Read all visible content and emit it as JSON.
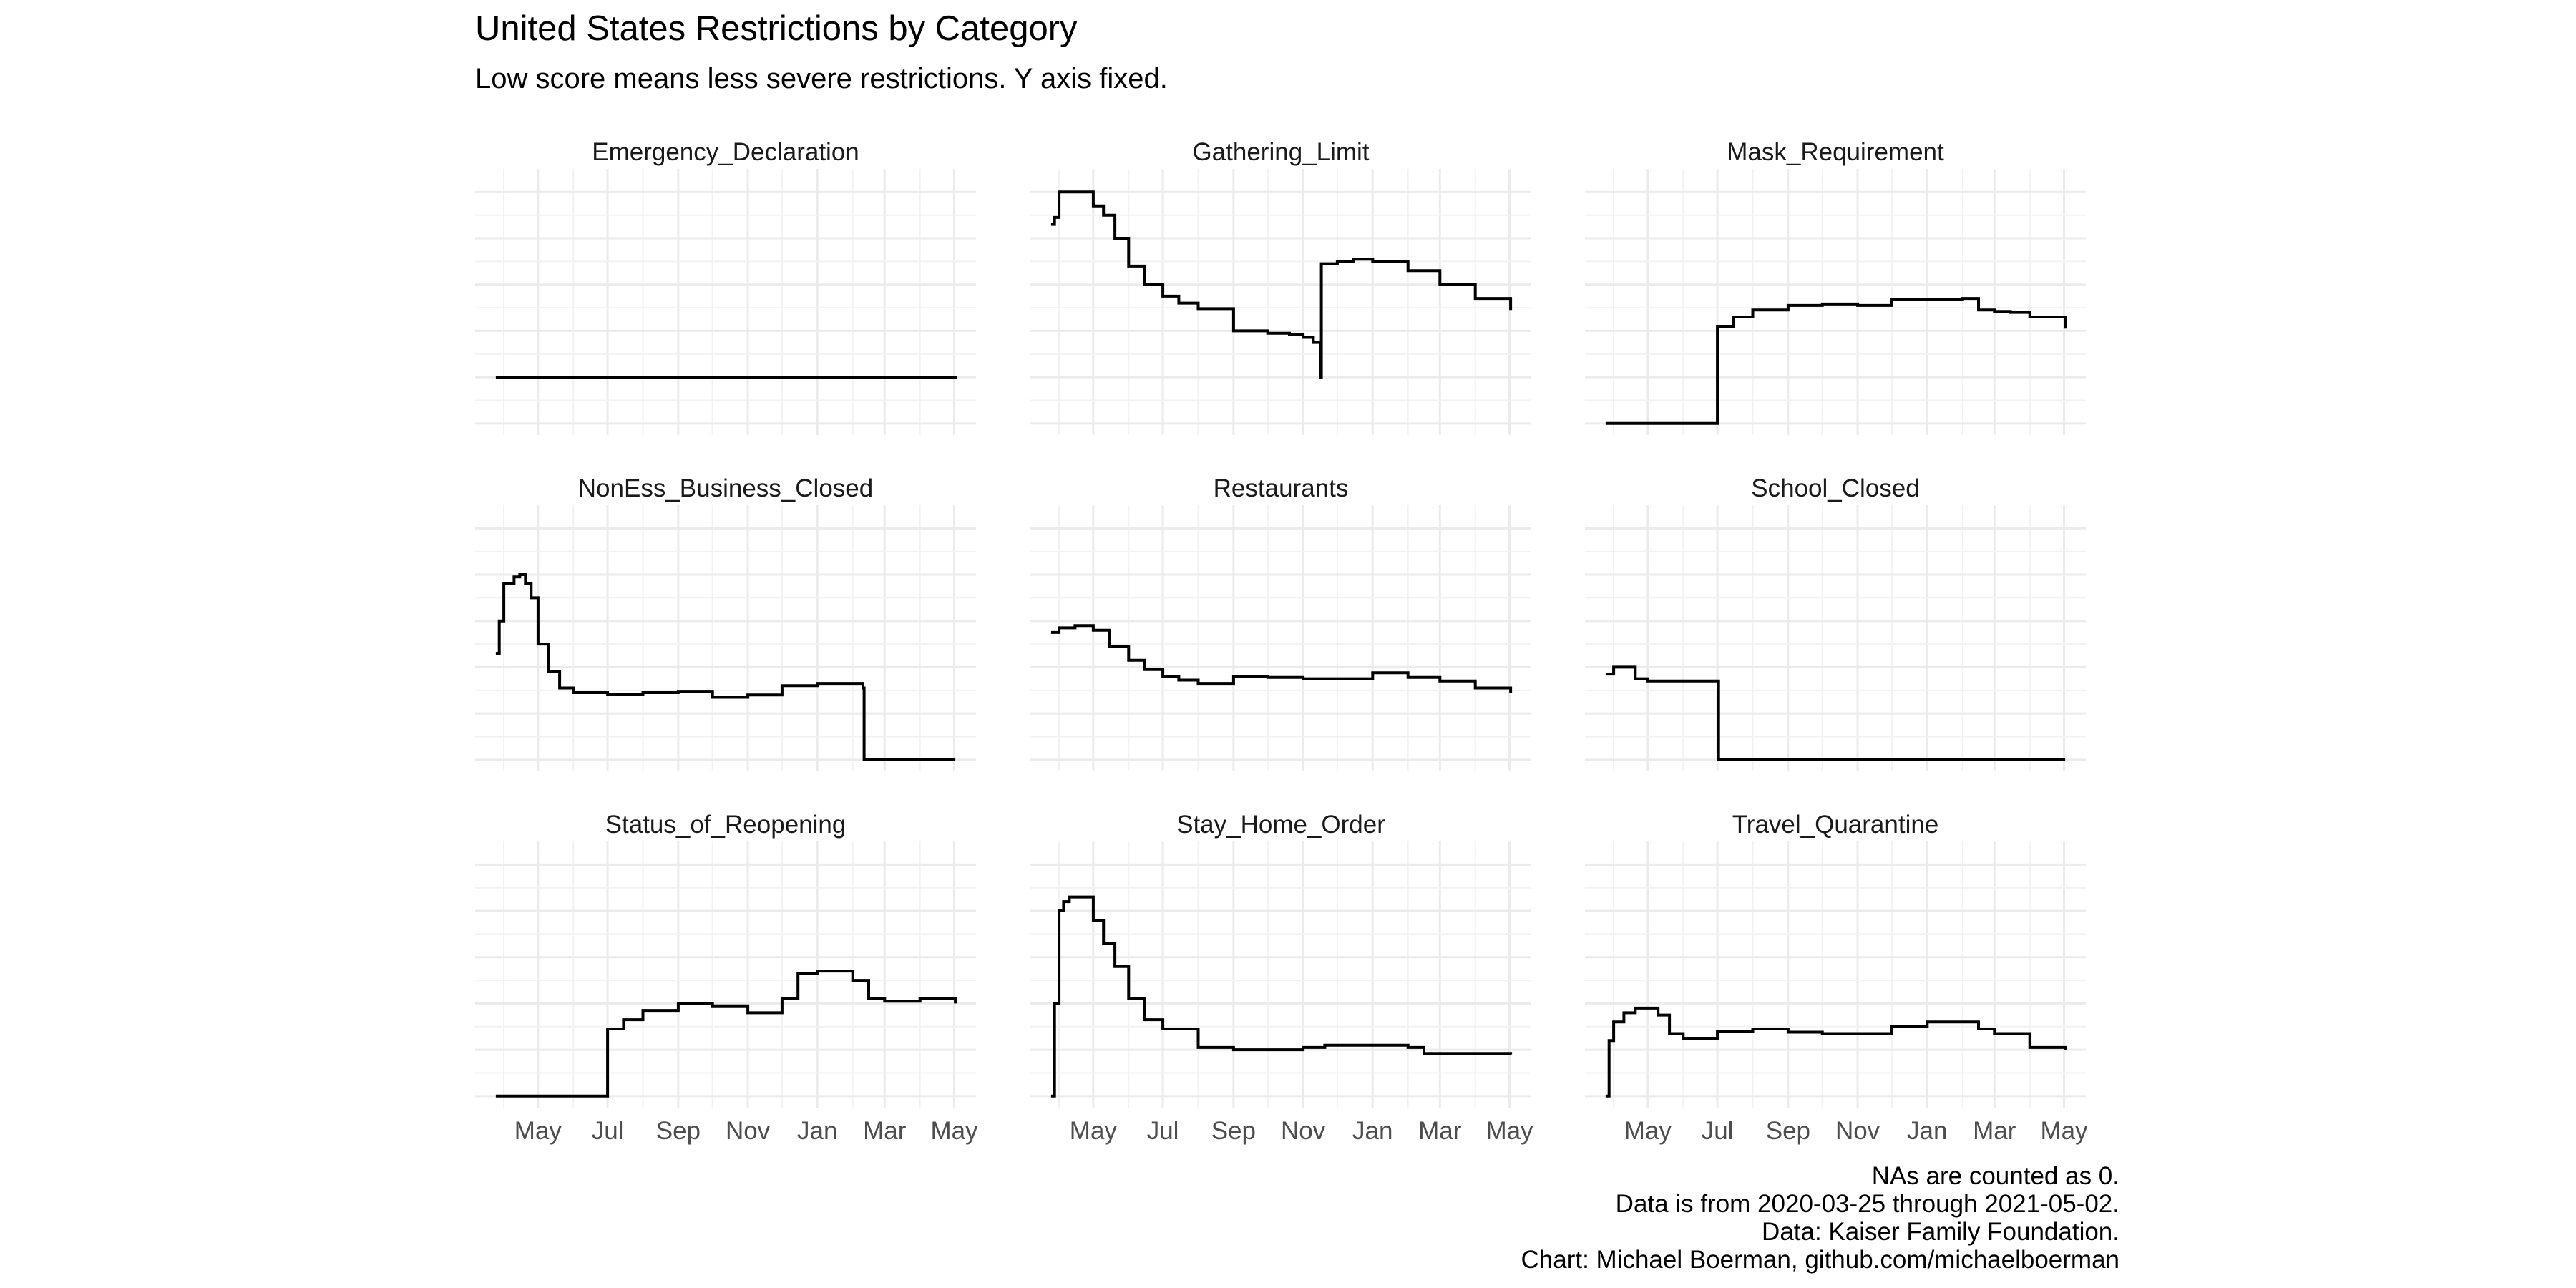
{
  "title": "United States Restrictions by Category",
  "subtitle": "Low score means less severe restrictions. Y axis fixed.",
  "captions": {
    "line1": "NAs are counted as 0.",
    "line2": "Data is from 2020-03-25 through 2021-05-02.",
    "line3": "Data: Kaiser Family Foundation.",
    "line4": "Chart: Michael Boerman, github.com/michaelboerman"
  },
  "chart_data": {
    "type": "line",
    "layout": "facet-grid 3x3",
    "y_axis": "fixed across panels, no tick labels",
    "x_tick_labels": [
      "May",
      "Jul",
      "Sep",
      "Nov",
      "Jan",
      "Mar",
      "May"
    ],
    "x_tick_dates": [
      "2020-05-01",
      "2020-07-01",
      "2020-09-01",
      "2020-11-01",
      "2021-01-01",
      "2021-03-01",
      "2021-05-01"
    ],
    "xlim": [
      "2020-03-25",
      "2021-05-02"
    ],
    "ylim": [
      0,
      5
    ],
    "grid": true,
    "line_color": "#000000",
    "grid_color": "#ebebeb",
    "panels": [
      {
        "name": "Emergency_Declaration",
        "x": [
          "2020-03-25",
          "2021-02-01",
          "2021-05-02"
        ],
        "y": [
          1.0,
          1.0,
          0.97
        ]
      },
      {
        "name": "Gathering_Limit",
        "x": [
          "2020-03-25",
          "2020-03-28",
          "2020-04-01",
          "2020-04-25",
          "2020-05-01",
          "2020-05-10",
          "2020-05-20",
          "2020-06-01",
          "2020-06-15",
          "2020-07-01",
          "2020-07-15",
          "2020-08-01",
          "2020-09-01",
          "2020-10-01",
          "2020-10-20",
          "2020-11-01",
          "2020-11-10",
          "2020-11-16",
          "2020-11-17",
          "2020-12-01",
          "2020-12-15",
          "2021-01-01",
          "2021-02-01",
          "2021-03-01",
          "2021-04-01",
          "2021-05-02"
        ],
        "y": [
          4.3,
          4.45,
          5.0,
          5.0,
          4.7,
          4.5,
          4.0,
          3.4,
          3.0,
          2.75,
          2.6,
          2.48,
          2.0,
          1.95,
          1.93,
          1.86,
          1.75,
          1.0,
          3.45,
          3.5,
          3.55,
          3.5,
          3.3,
          3.0,
          2.7,
          2.45
        ]
      },
      {
        "name": "Mask_Requirement",
        "x": [
          "2020-03-25",
          "2020-06-30",
          "2020-07-01",
          "2020-07-15",
          "2020-08-01",
          "2020-09-01",
          "2020-10-01",
          "2020-11-01",
          "2020-12-01",
          "2021-01-01",
          "2021-02-01",
          "2021-02-15",
          "2021-03-01",
          "2021-03-15",
          "2021-04-01",
          "2021-05-02"
        ],
        "y": [
          0.0,
          0.0,
          2.1,
          2.3,
          2.45,
          2.55,
          2.58,
          2.55,
          2.68,
          2.68,
          2.7,
          2.45,
          2.42,
          2.4,
          2.3,
          2.05
        ]
      },
      {
        "name": "NonEss_Business_Closed",
        "x": [
          "2020-03-25",
          "2020-03-28",
          "2020-04-01",
          "2020-04-10",
          "2020-04-15",
          "2020-04-20",
          "2020-04-25",
          "2020-05-01",
          "2020-05-10",
          "2020-05-20",
          "2020-06-01",
          "2020-07-01",
          "2020-08-01",
          "2020-09-01",
          "2020-10-01",
          "2020-11-01",
          "2020-12-01",
          "2021-01-01",
          "2021-02-10",
          "2021-02-11",
          "2021-05-02"
        ],
        "y": [
          2.3,
          3.0,
          3.8,
          3.95,
          4.0,
          3.8,
          3.5,
          2.5,
          1.9,
          1.55,
          1.45,
          1.42,
          1.45,
          1.48,
          1.35,
          1.4,
          1.6,
          1.65,
          1.55,
          0.0,
          0.0
        ]
      },
      {
        "name": "Restaurants",
        "x": [
          "2020-03-25",
          "2020-04-01",
          "2020-04-15",
          "2020-05-01",
          "2020-05-15",
          "2020-06-01",
          "2020-06-15",
          "2020-07-01",
          "2020-07-15",
          "2020-08-01",
          "2020-09-01",
          "2020-10-01",
          "2020-11-01",
          "2020-12-01",
          "2021-01-01",
          "2021-02-01",
          "2021-03-01",
          "2021-04-01",
          "2021-05-02"
        ],
        "y": [
          2.75,
          2.85,
          2.9,
          2.8,
          2.45,
          2.15,
          1.95,
          1.8,
          1.72,
          1.65,
          1.8,
          1.78,
          1.75,
          1.75,
          1.88,
          1.78,
          1.7,
          1.55,
          1.45
        ]
      },
      {
        "name": "School_Closed",
        "x": [
          "2020-03-25",
          "2020-04-01",
          "2020-04-10",
          "2020-04-20",
          "2020-05-01",
          "2020-06-01",
          "2020-07-01",
          "2020-07-02",
          "2021-05-02"
        ],
        "y": [
          1.85,
          2.0,
          2.0,
          1.75,
          1.7,
          1.7,
          1.7,
          0.0,
          0.0
        ]
      },
      {
        "name": "Status_of_Reopening",
        "x": [
          "2020-03-25",
          "2020-06-30",
          "2020-07-01",
          "2020-07-15",
          "2020-08-01",
          "2020-09-01",
          "2020-10-01",
          "2020-11-01",
          "2020-12-01",
          "2020-12-15",
          "2021-01-01",
          "2021-02-01",
          "2021-02-15",
          "2021-03-01",
          "2021-04-01",
          "2021-05-02"
        ],
        "y": [
          0.0,
          0.0,
          1.45,
          1.65,
          1.85,
          2.0,
          1.95,
          1.8,
          2.1,
          2.65,
          2.7,
          2.5,
          2.1,
          2.05,
          2.1,
          2.0
        ]
      },
      {
        "name": "Stay_Home_Order",
        "x": [
          "2020-03-25",
          "2020-03-28",
          "2020-04-01",
          "2020-04-05",
          "2020-04-10",
          "2020-04-20",
          "2020-05-01",
          "2020-05-10",
          "2020-05-20",
          "2020-06-01",
          "2020-06-15",
          "2020-07-01",
          "2020-08-01",
          "2020-09-01",
          "2020-10-01",
          "2020-11-01",
          "2020-11-20",
          "2020-12-01",
          "2021-01-01",
          "2021-02-01",
          "2021-02-15",
          "2021-05-02"
        ],
        "y": [
          0.0,
          2.0,
          4.0,
          4.2,
          4.3,
          4.3,
          3.8,
          3.3,
          2.8,
          2.1,
          1.65,
          1.45,
          1.05,
          1.0,
          1.0,
          1.05,
          1.1,
          1.1,
          1.1,
          1.05,
          0.92,
          0.9
        ]
      },
      {
        "name": "Travel_Quarantine",
        "x": [
          "2020-03-25",
          "2020-03-28",
          "2020-04-01",
          "2020-04-10",
          "2020-04-20",
          "2020-05-01",
          "2020-05-10",
          "2020-05-20",
          "2020-06-01",
          "2020-07-01",
          "2020-08-01",
          "2020-09-01",
          "2020-10-01",
          "2020-11-01",
          "2020-12-01",
          "2021-01-01",
          "2021-02-01",
          "2021-02-15",
          "2021-03-01",
          "2021-04-01",
          "2021-05-02"
        ],
        "y": [
          0.0,
          1.2,
          1.6,
          1.8,
          1.9,
          1.9,
          1.75,
          1.35,
          1.25,
          1.4,
          1.45,
          1.38,
          1.35,
          1.35,
          1.5,
          1.6,
          1.6,
          1.45,
          1.35,
          1.05,
          1.0
        ]
      }
    ]
  }
}
